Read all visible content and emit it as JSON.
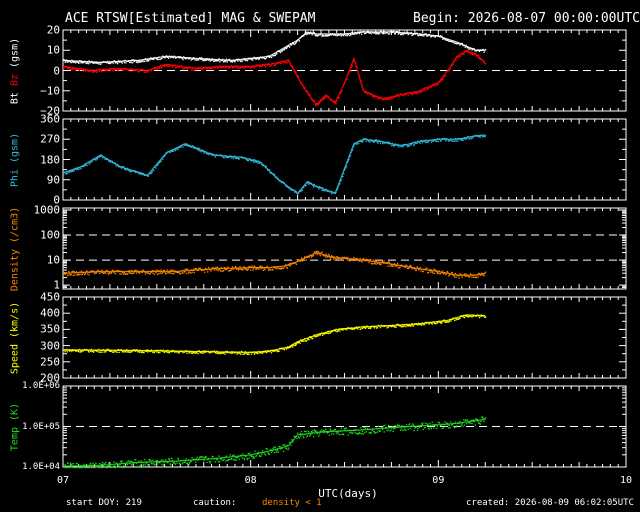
{
  "header": {
    "title": "ACE RTSW[Estimated] MAG & SWEPAM",
    "begin": "Begin: 2026-08-07 00:00:00UTC"
  },
  "footer": {
    "start": "start DOY: 219",
    "caution": "caution:",
    "caution_note": "density < 1",
    "created": "created: 2026-08-09 06:02:05UTC"
  },
  "colors": {
    "bt": "#ffffff",
    "bz": "#ff0000",
    "phi": "#33bbdd",
    "density": "#ff8800",
    "speed": "#ffff00",
    "temp": "#22dd22",
    "frame": "#ffffff",
    "reference_line": "#ffffff"
  },
  "chart_data": {
    "type": "scatter",
    "xlabel": "UTC(days)",
    "xlim": [
      7,
      10
    ],
    "x_ticks": [
      "07",
      "08",
      "09",
      "10"
    ],
    "data_end_day": 9.25,
    "panels": [
      {
        "id": "mag",
        "ylabel_parts": [
          "Bt",
          " Bz",
          " (gsm)"
        ],
        "ylabel_colors": [
          "#ffffff",
          "#ff0000",
          "#ffffff"
        ],
        "ylim": [
          -20,
          20
        ],
        "ticks": [
          "20",
          "10",
          "0",
          "−10",
          "−20"
        ],
        "tick_values": [
          20,
          10,
          0,
          -10,
          -20
        ],
        "dashed_at": [
          0
        ],
        "series": [
          {
            "name": "Bt",
            "color": "#ffffff",
            "x": [
              7.0,
              7.2,
              7.4,
              7.55,
              7.7,
              7.9,
              8.1,
              8.25,
              8.3,
              8.35,
              8.5,
              8.6,
              8.75,
              8.9,
              9.0,
              9.1,
              9.2,
              9.25
            ],
            "y": [
              5,
              4,
              5,
              7,
              6,
              5,
              7,
              15,
              19,
              18,
              18,
              19,
              19,
              18,
              17,
              14,
              10,
              10
            ]
          },
          {
            "name": "Bz",
            "color": "#ff0000",
            "x": [
              7.0,
              7.15,
              7.3,
              7.45,
              7.55,
              7.7,
              7.85,
              8.0,
              8.1,
              8.2,
              8.28,
              8.35,
              8.4,
              8.45,
              8.5,
              8.55,
              8.6,
              8.7,
              8.8,
              8.9,
              9.0,
              9.05,
              9.1,
              9.15,
              9.2,
              9.25
            ],
            "y": [
              2,
              0,
              1,
              0,
              3,
              1,
              2,
              2,
              3,
              5,
              -8,
              -17,
              -12,
              -16,
              -6,
              6,
              -10,
              -14,
              -12,
              -10,
              -6,
              0,
              7,
              10,
              8,
              4
            ]
          }
        ]
      },
      {
        "id": "phi",
        "ylabel_parts": [
          "Phi (gsm)"
        ],
        "ylabel_colors": [
          "#33bbdd"
        ],
        "ylim": [
          0,
          360
        ],
        "ticks": [
          "360",
          "270",
          "180",
          "90",
          "0"
        ],
        "tick_values": [
          360,
          270,
          180,
          90,
          0
        ],
        "dashed_at": [],
        "series": [
          {
            "name": "Phi",
            "color": "#33bbdd",
            "x": [
              7.0,
              7.1,
              7.2,
              7.3,
              7.45,
              7.55,
              7.65,
              7.8,
              7.95,
              8.05,
              8.15,
              8.25,
              8.3,
              8.35,
              8.45,
              8.55,
              8.6,
              8.7,
              8.8,
              8.9,
              9.0,
              9.1,
              9.2,
              9.25
            ],
            "y": [
              120,
              150,
              200,
              150,
              110,
              210,
              250,
              200,
              190,
              170,
              90,
              30,
              80,
              60,
              30,
              250,
              270,
              260,
              240,
              260,
              270,
              270,
              285,
              290
            ]
          }
        ]
      },
      {
        "id": "density",
        "ylabel_parts": [
          "Density (/cm3)"
        ],
        "ylabel_colors": [
          "#ff8800"
        ],
        "scale": "log",
        "ylim": [
          0.7,
          1200
        ],
        "ticks": [
          "1000",
          "100",
          "10",
          "1"
        ],
        "tick_values": [
          1000,
          100,
          10,
          1
        ],
        "dashed_at": [
          100,
          10
        ],
        "series": [
          {
            "name": "Density",
            "color": "#ff8800",
            "x": [
              7.0,
              7.2,
              7.4,
              7.6,
              7.8,
              8.0,
              8.1,
              8.2,
              8.3,
              8.35,
              8.45,
              8.5,
              8.6,
              8.7,
              8.8,
              8.9,
              9.0,
              9.1,
              9.2,
              9.25
            ],
            "y": [
              3.0,
              3.5,
              3.5,
              3.5,
              4.5,
              5,
              5,
              6,
              13,
              20,
              12,
              12,
              10,
              8,
              6,
              4.5,
              3.5,
              2.5,
              2.5,
              3.0
            ]
          }
        ]
      },
      {
        "id": "speed",
        "ylabel_parts": [
          "Speed (km/s)"
        ],
        "ylabel_colors": [
          "#ffff00"
        ],
        "ylim": [
          200,
          450
        ],
        "ticks": [
          "450",
          "400",
          "350",
          "300",
          "250",
          "200"
        ],
        "tick_values": [
          450,
          400,
          350,
          300,
          250,
          200
        ],
        "dashed_at": [],
        "series": [
          {
            "name": "Speed",
            "color": "#ffff00",
            "x": [
              7.0,
              7.2,
              7.4,
              7.6,
              7.8,
              8.0,
              8.1,
              8.2,
              8.25,
              8.35,
              8.45,
              8.6,
              8.75,
              8.9,
              9.05,
              9.15,
              9.25
            ],
            "y": [
              287,
              286,
              285,
              283,
              281,
              279,
              283,
              295,
              312,
              333,
              348,
              358,
              362,
              367,
              378,
              395,
              392
            ]
          }
        ]
      },
      {
        "id": "temp",
        "ylabel_parts": [
          "Temp (K)"
        ],
        "ylabel_colors": [
          "#22dd22"
        ],
        "scale": "log",
        "ylim": [
          10000,
          1000000
        ],
        "ticks": [
          "1.0E+06",
          "1.0E+05",
          "1.0E+04"
        ],
        "tick_values": [
          1000000,
          100000,
          10000
        ],
        "dashed_at": [
          100000
        ],
        "series": [
          {
            "name": "Temp",
            "color": "#22dd22",
            "x": [
              7.0,
              7.2,
              7.4,
              7.6,
              7.8,
              8.0,
              8.1,
              8.2,
              8.25,
              8.4,
              8.55,
              8.7,
              8.85,
              9.0,
              9.1,
              9.2,
              9.25
            ],
            "y": [
              10500,
              11000,
              13000,
              14000,
              16000,
              20000,
              25000,
              33000,
              62000,
              75000,
              80000,
              90000,
              100000,
              110000,
              120000,
              140000,
              150000
            ]
          }
        ]
      }
    ]
  }
}
